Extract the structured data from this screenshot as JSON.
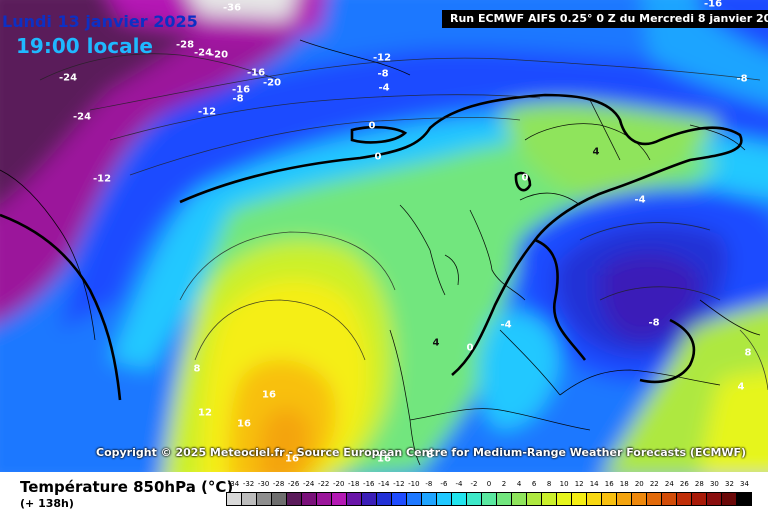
{
  "header": {
    "date": "Lundi 13 janvier 2025",
    "time": "19:00 locale",
    "run": "Run ECMWF AIFS 0.25° 0 Z du Mercredi 8 janvier 2025"
  },
  "copyright": "Copyright © 2025 Meteociel.fr - Source European Centre for Medium-Range Weather Forecasts (ECMWF)",
  "legend": {
    "title": "Température 850hPa (°C)",
    "subtitle": "(+ 138h)",
    "ticks": [
      "-34",
      "-32",
      "-30",
      "-28",
      "-26",
      "-24",
      "-22",
      "-20",
      "-18",
      "-16",
      "-14",
      "-12",
      "-10",
      "-8",
      "-6",
      "-4",
      "-2",
      "0",
      "2",
      "4",
      "6",
      "8",
      "10",
      "12",
      "14",
      "16",
      "18",
      "20",
      "22",
      "24",
      "26",
      "28",
      "30",
      "32",
      "34"
    ],
    "colors": [
      "#d9d9d9",
      "#bcbcbc",
      "#8e8e8e",
      "#6e6e6e",
      "#5a1a5a",
      "#7a107a",
      "#9b169b",
      "#b418b4",
      "#6a15a8",
      "#3b1eb8",
      "#2331d6",
      "#1f4cff",
      "#1e78ff",
      "#1fa4ff",
      "#20c8ff",
      "#22e4ee",
      "#3de8c8",
      "#5ae8a0",
      "#72e67e",
      "#8fe45c",
      "#aee840",
      "#cbf02c",
      "#e6f51c",
      "#f5ee14",
      "#f8d812",
      "#f8c010",
      "#f4a40e",
      "#ee880c",
      "#e26a0a",
      "#d24c08",
      "#c02e08",
      "#a81a08",
      "#8a0e0e",
      "#6a0808",
      "#000000"
    ]
  },
  "map": {
    "contour_labels": [
      {
        "text": "-36",
        "color": "white"
      },
      {
        "text": "-28",
        "color": "white"
      },
      {
        "text": "-24",
        "color": "white"
      },
      {
        "text": "-20",
        "color": "white"
      },
      {
        "text": "-24",
        "color": "white"
      },
      {
        "text": "-16",
        "color": "white"
      },
      {
        "text": "-20",
        "color": "white"
      },
      {
        "text": "-16",
        "color": "white"
      },
      {
        "text": "-8",
        "color": "white"
      },
      {
        "text": "-12",
        "color": "white"
      },
      {
        "text": "-12",
        "color": "white"
      },
      {
        "text": "-8",
        "color": "white"
      },
      {
        "text": "-4",
        "color": "white"
      },
      {
        "text": "-24",
        "color": "white"
      },
      {
        "text": "-12",
        "color": "white"
      },
      {
        "text": "0",
        "color": "white"
      },
      {
        "text": "0",
        "color": "white"
      },
      {
        "text": "-16",
        "color": "white"
      },
      {
        "text": "-8",
        "color": "white"
      },
      {
        "text": "4",
        "color": "black"
      },
      {
        "text": "0",
        "color": "white"
      },
      {
        "text": "-4",
        "color": "white"
      },
      {
        "text": "-4",
        "color": "white"
      },
      {
        "text": "-8",
        "color": "white"
      },
      {
        "text": "4",
        "color": "black"
      },
      {
        "text": "0",
        "color": "white"
      },
      {
        "text": "8",
        "color": "white"
      },
      {
        "text": "4",
        "color": "white"
      },
      {
        "text": "8",
        "color": "white"
      },
      {
        "text": "12",
        "color": "white"
      },
      {
        "text": "16",
        "color": "white"
      },
      {
        "text": "16",
        "color": "white"
      },
      {
        "text": "16",
        "color": "white"
      },
      {
        "text": "16",
        "color": "white"
      },
      {
        "text": "8",
        "color": "white"
      }
    ]
  }
}
